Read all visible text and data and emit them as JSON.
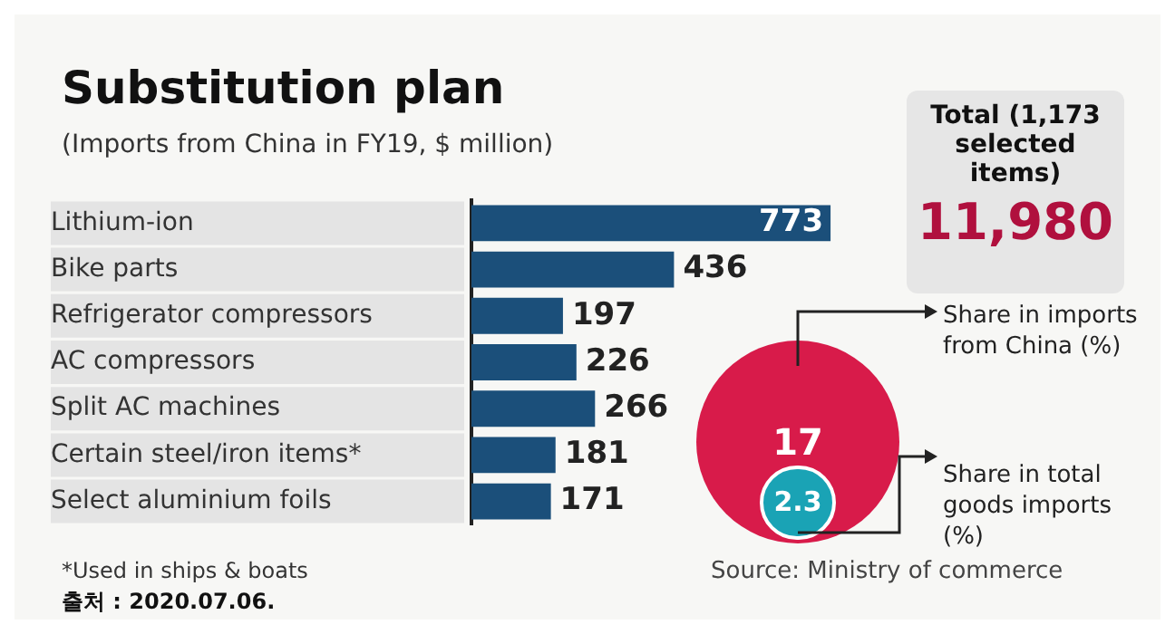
{
  "chart_data": [
    {
      "type": "bar",
      "orientation": "horizontal",
      "title": "Substitution plan",
      "subtitle": "(Imports from China in FY19, $ million)",
      "categories": [
        "Lithium-ion",
        "Bike parts",
        "Refrigerator compressors",
        "AC compressors",
        "Split AC machines",
        "Certain steel/iron items*",
        "Select aluminium foils"
      ],
      "values": [
        773,
        436,
        197,
        226,
        266,
        181,
        171
      ],
      "color": "#1b4f7a",
      "data_labels": true,
      "annotations": [
        "*Used in ships & boats",
        "Source: Ministry of commerce",
        "출처 : 2020.07.06."
      ]
    },
    {
      "type": "other",
      "title": "Total (1,173 selected items)",
      "annotations": [
        "11,980"
      ],
      "categories": [
        "Share in imports from China (%)",
        "Share in total goods imports (%)"
      ],
      "values": [
        17,
        2.3
      ],
      "colors": [
        "#d81b4a",
        "#1aa3b5"
      ],
      "data_labels": true
    }
  ]
}
